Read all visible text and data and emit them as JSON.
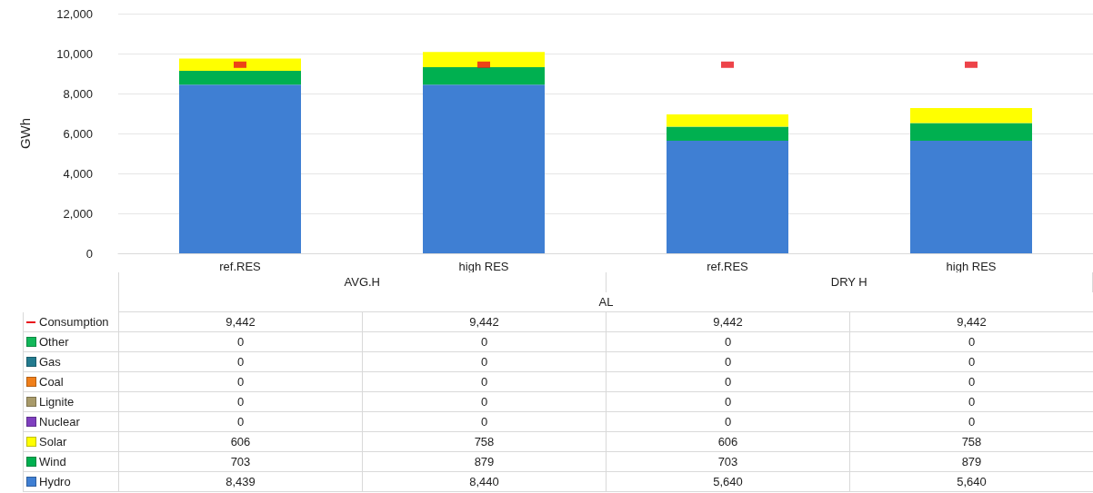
{
  "chart_data": {
    "type": "bar",
    "stacked": true,
    "ylabel": "GWh",
    "categories": [
      "ref.RES",
      "high RES",
      "ref.RES",
      "high RES"
    ],
    "annotations": [
      "AVG.H",
      "DRY H",
      "AL"
    ],
    "ylim": [
      0,
      12000
    ],
    "yticks": [
      0,
      {
        "value": 2000,
        "label": "2,000"
      },
      {
        "value": 4000,
        "label": "4,000"
      },
      {
        "value": 6000,
        "label": "6,000"
      },
      {
        "value": 8000,
        "label": "8,000"
      },
      {
        "value": 10000,
        "label": "10,000"
      },
      {
        "value": 12000,
        "label": "12,000"
      }
    ],
    "grid": "y",
    "legend": "bottom",
    "marker": "square",
    "series": [
      {
        "name": "Hydro",
        "color": "#3f7fd3",
        "values": [
          8439,
          8440,
          5640,
          5640
        ],
        "value_labels": [
          "8,439",
          "8,440",
          "5,640",
          "5,640"
        ]
      },
      {
        "name": "Wind",
        "color": "#00b050",
        "values": [
          703,
          879,
          703,
          879
        ],
        "value_labels": [
          "703",
          "879",
          "703",
          "879"
        ]
      },
      {
        "name": "Solar",
        "color": "#ffff00",
        "values": [
          606,
          758,
          606,
          758
        ],
        "value_labels": [
          "606",
          "758",
          "606",
          "758"
        ]
      },
      {
        "name": "Nuclear",
        "color": "#7f3fbf",
        "values": [
          0,
          0,
          0,
          0
        ],
        "value_labels": [
          "0",
          "0",
          "0",
          "0"
        ]
      },
      {
        "name": "Lignite",
        "color": "#a89a6a",
        "values": [
          0,
          0,
          0,
          0
        ],
        "value_labels": [
          "0",
          "0",
          "0",
          "0"
        ]
      },
      {
        "name": "Coal",
        "color": "#f07f1a",
        "values": [
          0,
          0,
          0,
          0
        ],
        "value_labels": [
          "0",
          "0",
          "0",
          "0"
        ]
      },
      {
        "name": "Gas",
        "color": "#237b8f",
        "values": [
          0,
          0,
          0,
          0
        ],
        "value_labels": [
          "0",
          "0",
          "0",
          "0"
        ]
      },
      {
        "name": "Other",
        "color": "#12b85a",
        "values": [
          0,
          0,
          0,
          0
        ],
        "value_labels": [
          "0",
          "0",
          "0",
          "0"
        ]
      },
      {
        "name": "Consumption",
        "type": "scatter",
        "color": "#e8141c",
        "values": [
          9442,
          9442,
          9442,
          9442
        ],
        "value_labels": [
          "9,442",
          "9,442",
          "9,442",
          "9,442"
        ]
      }
    ]
  }
}
